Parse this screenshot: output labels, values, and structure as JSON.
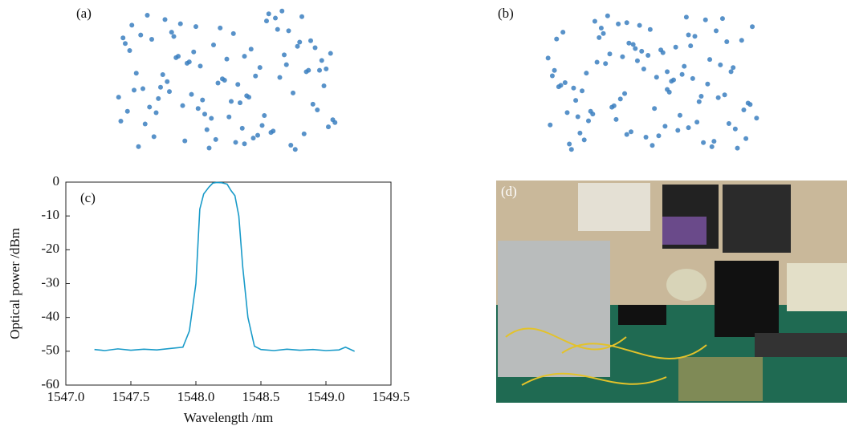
{
  "chart_data": [
    {
      "type": "scatter",
      "panel_label": "(a)",
      "color": "#3b7fc0",
      "x": [
        0.12,
        0.85,
        0.47,
        0.33,
        0.91,
        0.06,
        0.58,
        0.74,
        0.22,
        0.39,
        0.66,
        0.03,
        0.95,
        0.51,
        0.28,
        0.8,
        0.14,
        0.62,
        0.44,
        0.89,
        0.09,
        0.71,
        0.36,
        0.55,
        0.18,
        0.97,
        0.42,
        0.77,
        0.25,
        0.6,
        0.02,
        0.83,
        0.49,
        0.31,
        0.68,
        0.15,
        0.93,
        0.57,
        0.2,
        0.75,
        0.4,
        0.87,
        0.11,
        0.64,
        0.35,
        0.52,
        0.79,
        0.07,
        0.46,
        0.98,
        0.27,
        0.7,
        0.16,
        0.59,
        0.38,
        0.84,
        0.05,
        0.63,
        0.45,
        0.9,
        0.24,
        0.73,
        0.13,
        0.56,
        0.32,
        0.81,
        0.48,
        0.04,
        0.67,
        0.29,
        0.94,
        0.41,
        0.76,
        0.19,
        0.53,
        0.86,
        0.1,
        0.61,
        0.37,
        0.72,
        0.23,
        0.96,
        0.5,
        0.34,
        0.78,
        0.17,
        0.65,
        0.43,
        0.88,
        0.08,
        0.69,
        0.3,
        0.54,
        0.82,
        0.21,
        0.99,
        0.26,
        0.58,
        0.01,
        0.92
      ],
      "y": [
        0.44,
        0.12,
        0.87,
        0.63,
        0.29,
        0.71,
        0.05,
        0.52,
        0.93,
        0.36,
        0.18,
        0.8,
        0.58,
        0.24,
        0.67,
        0.41,
        0.96,
        0.09,
        0.75,
        0.33,
        0.55,
        0.14,
        0.88,
        0.47,
        0.27,
        0.69,
        0.02,
        0.61,
        0.84,
        0.38,
        0.21,
        0.77,
        0.5,
        0.07,
        0.92,
        0.31,
        0.64,
        0.16,
        0.45,
        0.99,
        0.26,
        0.57,
        0.82,
        0.11,
        0.7,
        0.35,
        0.04,
        0.89,
        0.48,
        0.22,
        0.66,
        0.13,
        0.79,
        0.39,
        0.6,
        0.95,
        0.28,
        0.53,
        0.08,
        0.73,
        0.42,
        0.86,
        0.19,
        0.34,
        0.62,
        0.01,
        0.51,
        0.76,
        0.25,
        0.9,
        0.46,
        0.15,
        0.68,
        0.37,
        0.83,
        0.56,
        0.03,
        0.72,
        0.3,
        0.94,
        0.49,
        0.17,
        0.65,
        0.4,
        0.85,
        0.1,
        0.59,
        0.23,
        0.78,
        0.43,
        0.97,
        0.32,
        0.06,
        0.74,
        0.54,
        0.2,
        0.81,
        0.67,
        0.38,
        0.57
      ]
    },
    {
      "type": "scatter",
      "panel_label": "(b)",
      "color": "#3b7fc0",
      "x": [
        0.44,
        0.12,
        0.87,
        0.63,
        0.29,
        0.71,
        0.05,
        0.52,
        0.93,
        0.36,
        0.18,
        0.8,
        0.58,
        0.24,
        0.67,
        0.41,
        0.96,
        0.09,
        0.75,
        0.33,
        0.55,
        0.14,
        0.88,
        0.47,
        0.27,
        0.69,
        0.02,
        0.61,
        0.84,
        0.38,
        0.21,
        0.77,
        0.5,
        0.07,
        0.92,
        0.31,
        0.64,
        0.16,
        0.45,
        0.99,
        0.26,
        0.57,
        0.82,
        0.11,
        0.7,
        0.35,
        0.04,
        0.89,
        0.48,
        0.22,
        0.66,
        0.13,
        0.79,
        0.39,
        0.6,
        0.95,
        0.28,
        0.53,
        0.08,
        0.73,
        0.42,
        0.86,
        0.19,
        0.34,
        0.62,
        0.01,
        0.51,
        0.76,
        0.25,
        0.9,
        0.46,
        0.15,
        0.68,
        0.37,
        0.83,
        0.56,
        0.03,
        0.72,
        0.3,
        0.94,
        0.49,
        0.17,
        0.65,
        0.4,
        0.85,
        0.1,
        0.59,
        0.23,
        0.78,
        0.43,
        0.97,
        0.32,
        0.06,
        0.74,
        0.54,
        0.2,
        0.81,
        0.67,
        0.38,
        0.57
      ],
      "y": [
        0.92,
        0.01,
        0.58,
        0.26,
        0.99,
        0.21,
        0.82,
        0.54,
        0.3,
        0.69,
        0.08,
        0.88,
        0.43,
        0.65,
        0.17,
        0.78,
        0.34,
        0.5,
        0.96,
        0.23,
        0.72,
        0.37,
        0.61,
        0.1,
        0.86,
        0.53,
        0.19,
        0.76,
        0.41,
        0.94,
        0.29,
        0.67,
        0.04,
        0.48,
        0.81,
        0.32,
        0.56,
        0.13,
        0.73,
        0.24,
        0.9,
        0.45,
        0.63,
        0.05,
        0.84,
        0.38,
        0.59,
        0.16,
        0.7,
        0.27,
        0.98,
        0.46,
        0.07,
        0.79,
        0.52,
        0.35,
        0.64,
        0.11,
        0.87,
        0.4,
        0.75,
        0.2,
        0.57,
        0.93,
        0.15,
        0.68,
        0.31,
        0.49,
        0.83,
        0.02,
        0.6,
        0.25,
        0.77,
        0.42,
        0.97,
        0.18,
        0.55,
        0.36,
        0.71,
        0.09,
        0.89,
        0.44,
        0.62,
        0.14,
        0.8,
        0.28,
        0.51,
        0.95,
        0.03,
        0.66,
        0.91,
        0.33,
        0.47,
        0.06,
        0.74,
        0.22,
        0.39,
        0.85,
        0.12,
        0.58
      ]
    },
    {
      "type": "line",
      "panel_label": "(c)",
      "color": "#1a9bc9",
      "xlabel": "Wavelength /nm",
      "ylabel": "Optical power /dBm",
      "x": [
        1547.22,
        1547.3,
        1547.4,
        1547.5,
        1547.6,
        1547.7,
        1547.8,
        1547.9,
        1547.95,
        1548.0,
        1548.03,
        1548.06,
        1548.1,
        1548.13,
        1548.16,
        1548.2,
        1548.24,
        1548.27,
        1548.3,
        1548.33,
        1548.36,
        1548.4,
        1548.45,
        1548.5,
        1548.6,
        1548.7,
        1548.8,
        1548.9,
        1549.0,
        1549.1,
        1549.15,
        1549.22
      ],
      "values": [
        -49.5,
        -49.8,
        -49.3,
        -49.7,
        -49.4,
        -49.6,
        -49.2,
        -48.8,
        -44,
        -30,
        -8,
        -3.5,
        -1.5,
        -0.3,
        -0.1,
        -0.2,
        -0.6,
        -2.5,
        -4,
        -10,
        -25,
        -40,
        -48.5,
        -49.5,
        -49.8,
        -49.4,
        -49.7,
        -49.5,
        -49.8,
        -49.6,
        -48.8,
        -50
      ],
      "xlim": [
        1547.0,
        1549.5
      ],
      "xticks": [
        {
          "value": 1547.0,
          "label": "1547.0"
        },
        {
          "value": 1547.5,
          "label": "1547.5"
        },
        {
          "value": 1548.0,
          "label": "1548.0"
        },
        {
          "value": 1548.5,
          "label": "1548.5"
        },
        {
          "value": 1549.0,
          "label": "1549.0"
        },
        {
          "value": 1549.5,
          "label": "1549.5"
        }
      ],
      "ylim": [
        -60,
        0
      ],
      "yticks": [
        0,
        -10,
        -20,
        -30,
        -40,
        -50,
        -60
      ]
    }
  ],
  "photo_panel": {
    "label": "(d)"
  }
}
